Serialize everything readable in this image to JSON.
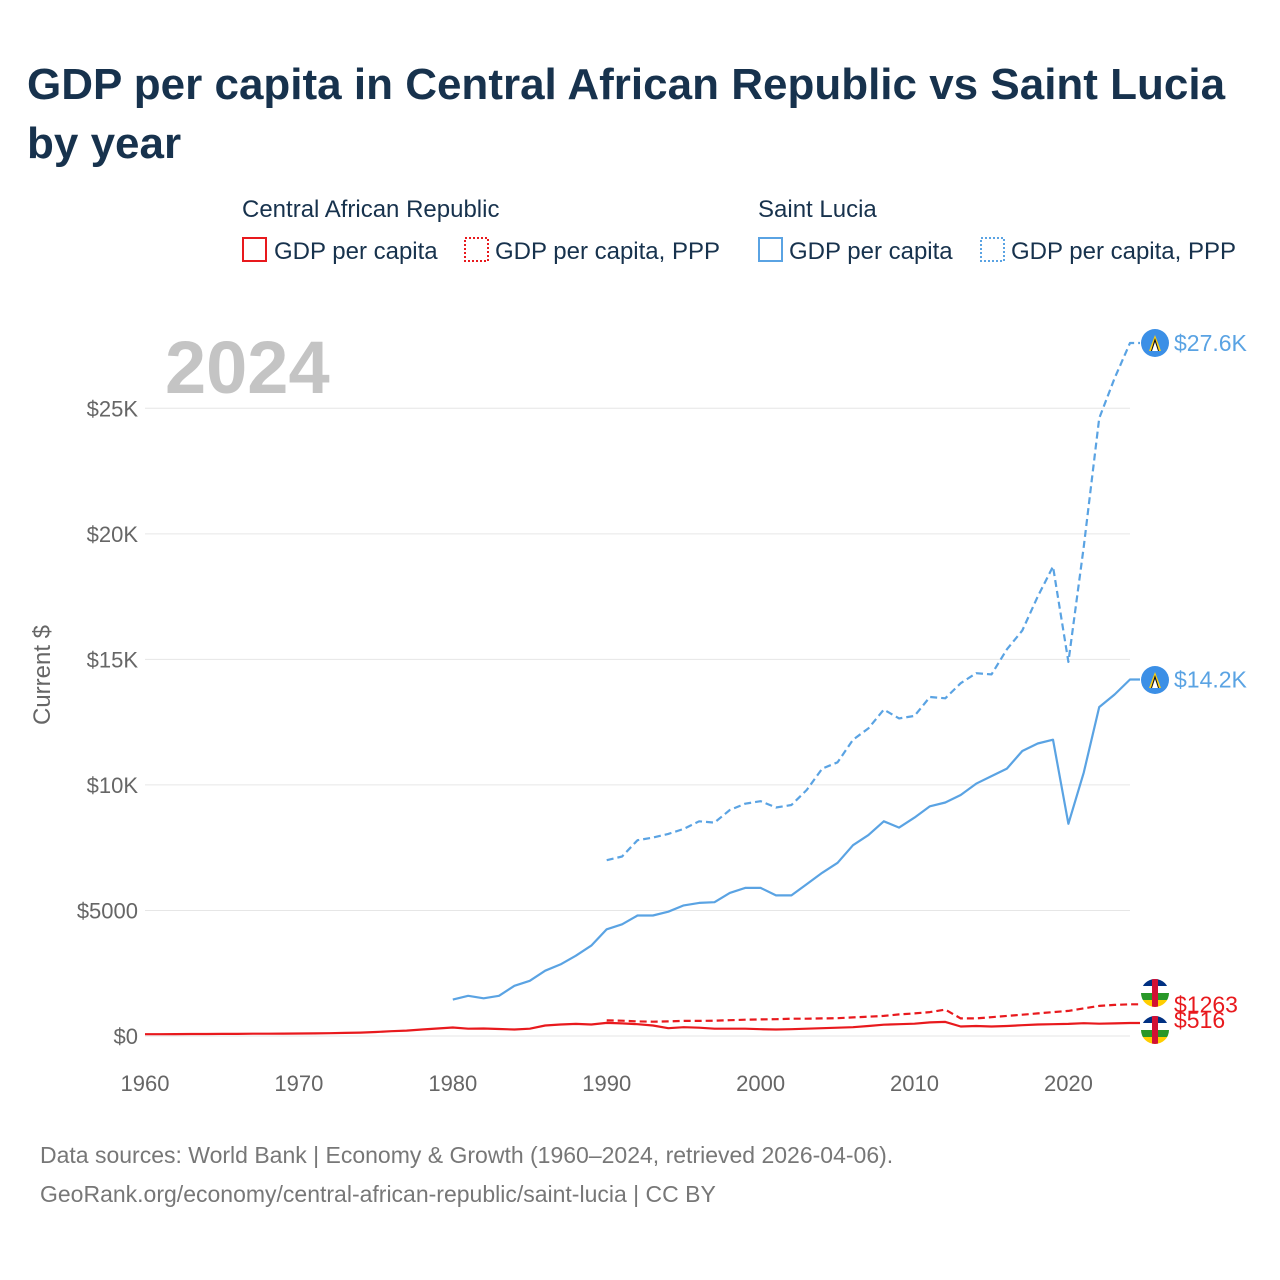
{
  "title": "GDP per capita in Central African Republic vs Saint Lucia by year",
  "legend": [
    {
      "group": "Central African Republic",
      "color": "#e8191d",
      "items": [
        {
          "label": "GDP per capita",
          "style": "solid"
        },
        {
          "label": "GDP per capita, PPP",
          "style": "dotted"
        }
      ]
    },
    {
      "group": "Saint Lucia",
      "color": "#5aa3e3",
      "items": [
        {
          "label": "GDP per capita",
          "style": "solid"
        },
        {
          "label": "GDP per capita, PPP",
          "style": "dotted"
        }
      ]
    }
  ],
  "year_label": "2024",
  "footer": {
    "line1": "Data sources: World Bank | Economy & Growth (1960–2024, retrieved 2026-04-06).",
    "line2": "GeoRank.org/economy/central-african-republic/saint-lucia | CC BY"
  },
  "chart_data": {
    "type": "line",
    "title": "GDP per capita in Central African Republic vs Saint Lucia by year",
    "xlabel": "",
    "ylabel": "Current $",
    "xlim": [
      1960,
      2024
    ],
    "ylim": [
      0,
      27600
    ],
    "x_ticks": [
      1960,
      1970,
      1980,
      1990,
      2000,
      2010,
      2020
    ],
    "x_tick_labels": [
      "1960",
      "1970",
      "1980",
      "1990",
      "2000",
      "2010",
      "2020"
    ],
    "y_ticks": [
      0,
      5000,
      10000,
      15000,
      20000,
      25000
    ],
    "y_tick_labels": [
      "$0",
      "$5000",
      "$10K",
      "$15K",
      "$20K",
      "$25K"
    ],
    "grid": true,
    "series": [
      {
        "name": "Saint Lucia GDP per capita, PPP",
        "country": "Saint Lucia",
        "color": "#5aa3e3",
        "dash": "dashed",
        "end_label": "$27.6K",
        "x": [
          1990,
          1991,
          1992,
          1993,
          1994,
          1995,
          1996,
          1997,
          1998,
          1999,
          2000,
          2001,
          2002,
          2003,
          2004,
          2005,
          2006,
          2007,
          2008,
          2009,
          2010,
          2011,
          2012,
          2013,
          2014,
          2015,
          2016,
          2017,
          2018,
          2019,
          2020,
          2021,
          2022,
          2023,
          2024
        ],
        "y": [
          7000,
          7150,
          7800,
          7900,
          8050,
          8250,
          8550,
          8500,
          9000,
          9250,
          9350,
          9100,
          9200,
          9800,
          10650,
          10900,
          11800,
          12250,
          13000,
          12650,
          12750,
          13500,
          13450,
          14050,
          14450,
          14400,
          15400,
          16150,
          17500,
          18700,
          14900,
          19500,
          24600,
          26200,
          27600
        ]
      },
      {
        "name": "Saint Lucia GDP per capita",
        "country": "Saint Lucia",
        "color": "#5aa3e3",
        "dash": "solid",
        "end_label": "$14.2K",
        "x": [
          1980,
          1981,
          1982,
          1983,
          1984,
          1985,
          1986,
          1987,
          1988,
          1989,
          1990,
          1991,
          1992,
          1993,
          1994,
          1995,
          1996,
          1997,
          1998,
          1999,
          2000,
          2001,
          2002,
          2003,
          2004,
          2005,
          2006,
          2007,
          2008,
          2009,
          2010,
          2011,
          2012,
          2013,
          2014,
          2015,
          2016,
          2017,
          2018,
          2019,
          2020,
          2021,
          2022,
          2023,
          2024
        ],
        "y": [
          1450,
          1600,
          1500,
          1600,
          2000,
          2200,
          2600,
          2850,
          3200,
          3600,
          4250,
          4450,
          4800,
          4800,
          4950,
          5200,
          5300,
          5330,
          5700,
          5900,
          5900,
          5600,
          5600,
          6050,
          6500,
          6900,
          7600,
          8000,
          8550,
          8300,
          8700,
          9150,
          9300,
          9600,
          10050,
          10350,
          10650,
          11350,
          11650,
          11800,
          8450,
          10500,
          13100,
          13600,
          14200
        ]
      },
      {
        "name": "Central African Republic GDP per capita, PPP",
        "country": "Central African Republic",
        "color": "#e8191d",
        "dash": "dashed",
        "end_label": "$1263",
        "x": [
          1990,
          1991,
          1992,
          1993,
          1994,
          1995,
          1996,
          1997,
          1998,
          1999,
          2000,
          2001,
          2002,
          2003,
          2004,
          2005,
          2006,
          2007,
          2008,
          2009,
          2010,
          2011,
          2012,
          2013,
          2014,
          2015,
          2016,
          2017,
          2018,
          2019,
          2020,
          2021,
          2022,
          2023,
          2024
        ],
        "y": [
          620,
          610,
          580,
          570,
          580,
          600,
          600,
          610,
          630,
          650,
          660,
          670,
          690,
          690,
          700,
          710,
          740,
          770,
          800,
          860,
          900,
          950,
          1050,
          700,
          700,
          750,
          800,
          850,
          900,
          950,
          1000,
          1100,
          1200,
          1240,
          1263
        ]
      },
      {
        "name": "Central African Republic GDP per capita",
        "country": "Central African Republic",
        "color": "#e8191d",
        "dash": "solid",
        "end_label": "$516",
        "x": [
          1960,
          1961,
          1962,
          1963,
          1964,
          1965,
          1966,
          1967,
          1968,
          1969,
          1970,
          1971,
          1972,
          1973,
          1974,
          1975,
          1976,
          1977,
          1978,
          1979,
          1980,
          1981,
          1982,
          1983,
          1984,
          1985,
          1986,
          1987,
          1988,
          1989,
          1990,
          1991,
          1992,
          1993,
          1994,
          1995,
          1996,
          1997,
          1998,
          1999,
          2000,
          2001,
          2002,
          2003,
          2004,
          2005,
          2006,
          2007,
          2008,
          2009,
          2010,
          2011,
          2012,
          2013,
          2014,
          2015,
          2016,
          2017,
          2018,
          2019,
          2020,
          2021,
          2022,
          2023,
          2024
        ],
        "y": [
          70,
          72,
          74,
          78,
          80,
          82,
          84,
          90,
          92,
          94,
          98,
          105,
          110,
          125,
          135,
          160,
          190,
          215,
          260,
          300,
          340,
          290,
          300,
          280,
          260,
          290,
          420,
          460,
          480,
          460,
          520,
          500,
          470,
          420,
          310,
          350,
          330,
          290,
          290,
          290,
          270,
          260,
          270,
          290,
          310,
          330,
          350,
          400,
          450,
          470,
          490,
          540,
          560,
          380,
          400,
          380,
          400,
          430,
          460,
          470,
          480,
          510,
          490,
          500,
          516
        ]
      }
    ]
  }
}
